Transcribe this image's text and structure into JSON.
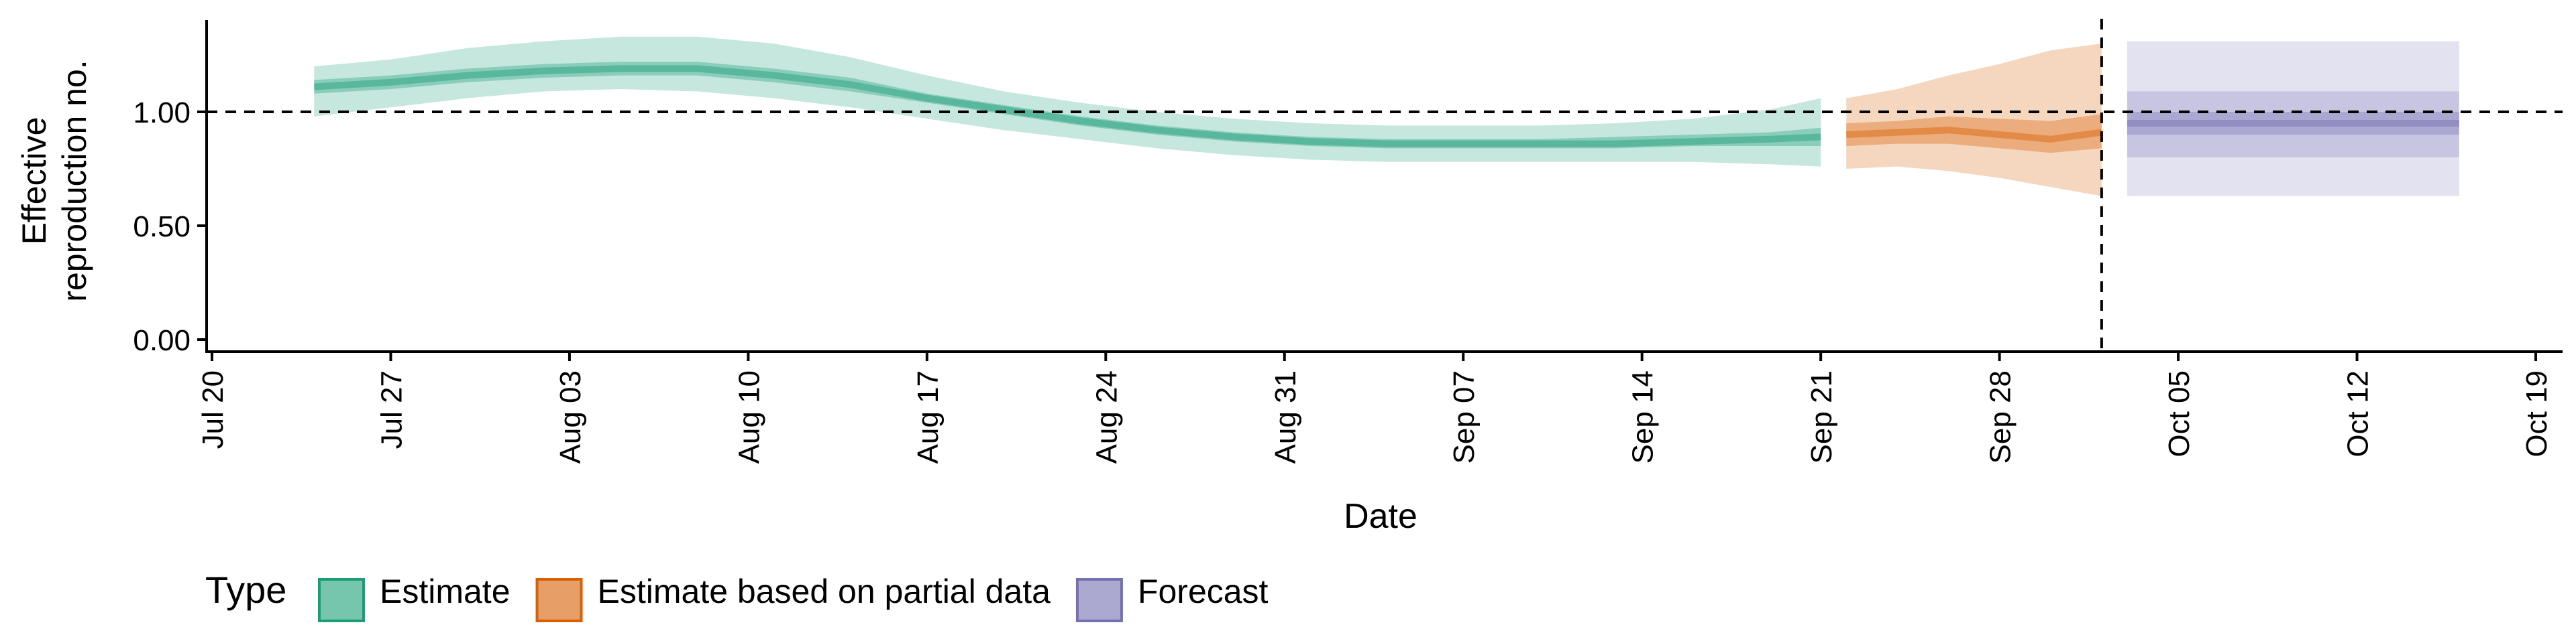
{
  "chart_data": {
    "type": "area",
    "title": "",
    "xlabel": "Date",
    "ylabel": "Effective\nreproduction no.",
    "xlim": [
      "2020-07-20",
      "2020-10-19"
    ],
    "ylim": [
      -0.05,
      1.4
    ],
    "x_ticks": [
      "Jul 20",
      "Jul 27",
      "Aug 03",
      "Aug 10",
      "Aug 17",
      "Aug 24",
      "Aug 31",
      "Sep 07",
      "Sep 14",
      "Sep 21",
      "Sep 28",
      "Oct 05",
      "Oct 12",
      "Oct 19"
    ],
    "x_tick_dates": [
      "2020-07-20",
      "2020-07-27",
      "2020-08-03",
      "2020-08-10",
      "2020-08-17",
      "2020-08-24",
      "2020-08-31",
      "2020-09-07",
      "2020-09-14",
      "2020-09-21",
      "2020-09-28",
      "2020-10-05",
      "2020-10-12",
      "2020-10-19"
    ],
    "y_ticks": [
      0.0,
      0.5,
      1.0
    ],
    "y_tick_labels": [
      "0.00",
      "0.50",
      "1.00"
    ],
    "reference_line": {
      "y": 1.0,
      "style": "dashed"
    },
    "vline": {
      "x": "2020-10-02",
      "style": "dashed"
    },
    "grid": false,
    "legend": {
      "title": "Type",
      "placement": "bottom-left",
      "items": [
        {
          "label": "Estimate",
          "color": "#1b9e77"
        },
        {
          "label": "Estimate based on partial data",
          "color": "#d95f02"
        },
        {
          "label": "Forecast",
          "color": "#7570b3"
        }
      ]
    },
    "series": [
      {
        "name": "Estimate",
        "color": "#1b9e77",
        "x": [
          "2020-07-24",
          "2020-07-27",
          "2020-07-30",
          "2020-08-02",
          "2020-08-05",
          "2020-08-08",
          "2020-08-11",
          "2020-08-14",
          "2020-08-17",
          "2020-08-20",
          "2020-08-23",
          "2020-08-26",
          "2020-08-29",
          "2020-09-01",
          "2020-09-04",
          "2020-09-07",
          "2020-09-10",
          "2020-09-13",
          "2020-09-16",
          "2020-09-19",
          "2020-09-21"
        ],
        "median": [
          1.11,
          1.13,
          1.16,
          1.18,
          1.19,
          1.19,
          1.16,
          1.12,
          1.06,
          1.01,
          0.96,
          0.92,
          0.89,
          0.87,
          0.86,
          0.86,
          0.86,
          0.86,
          0.87,
          0.88,
          0.89
        ],
        "lower_50": [
          1.08,
          1.1,
          1.13,
          1.15,
          1.16,
          1.16,
          1.13,
          1.09,
          1.04,
          0.99,
          0.94,
          0.9,
          0.87,
          0.85,
          0.84,
          0.84,
          0.84,
          0.84,
          0.85,
          0.85,
          0.85
        ],
        "upper_50": [
          1.14,
          1.16,
          1.19,
          1.21,
          1.22,
          1.22,
          1.19,
          1.15,
          1.08,
          1.03,
          0.98,
          0.94,
          0.91,
          0.89,
          0.88,
          0.88,
          0.88,
          0.89,
          0.9,
          0.91,
          0.93
        ],
        "lower_90": [
          0.98,
          1.02,
          1.06,
          1.09,
          1.1,
          1.09,
          1.06,
          1.02,
          0.97,
          0.92,
          0.88,
          0.84,
          0.81,
          0.79,
          0.78,
          0.78,
          0.78,
          0.78,
          0.78,
          0.77,
          0.76
        ],
        "upper_90": [
          1.2,
          1.23,
          1.28,
          1.31,
          1.33,
          1.33,
          1.3,
          1.24,
          1.16,
          1.09,
          1.04,
          1.0,
          0.97,
          0.95,
          0.94,
          0.94,
          0.94,
          0.95,
          0.97,
          1.01,
          1.06
        ]
      },
      {
        "name": "Estimate based on partial data",
        "color": "#d95f02",
        "x": [
          "2020-09-22",
          "2020-09-24",
          "2020-09-26",
          "2020-09-28",
          "2020-09-30",
          "2020-10-02"
        ],
        "median": [
          0.9,
          0.91,
          0.92,
          0.9,
          0.88,
          0.91
        ],
        "lower_50": [
          0.85,
          0.86,
          0.86,
          0.84,
          0.82,
          0.84
        ],
        "upper_50": [
          0.95,
          0.96,
          0.98,
          0.97,
          0.96,
          0.99
        ],
        "lower_90": [
          0.75,
          0.76,
          0.74,
          0.71,
          0.67,
          0.63
        ],
        "upper_90": [
          1.06,
          1.1,
          1.16,
          1.21,
          1.27,
          1.3
        ]
      },
      {
        "name": "Forecast",
        "color": "#7570b3",
        "x": [
          "2020-10-03",
          "2020-10-16"
        ],
        "median": [
          0.95,
          0.95
        ],
        "lower_50": [
          0.9,
          0.9
        ],
        "upper_50": [
          1.0,
          1.0
        ],
        "lower_inner": [
          0.8,
          0.8
        ],
        "upper_inner": [
          1.09,
          1.09
        ],
        "lower_90": [
          0.63,
          0.63
        ],
        "upper_90": [
          1.31,
          1.31
        ]
      }
    ]
  }
}
